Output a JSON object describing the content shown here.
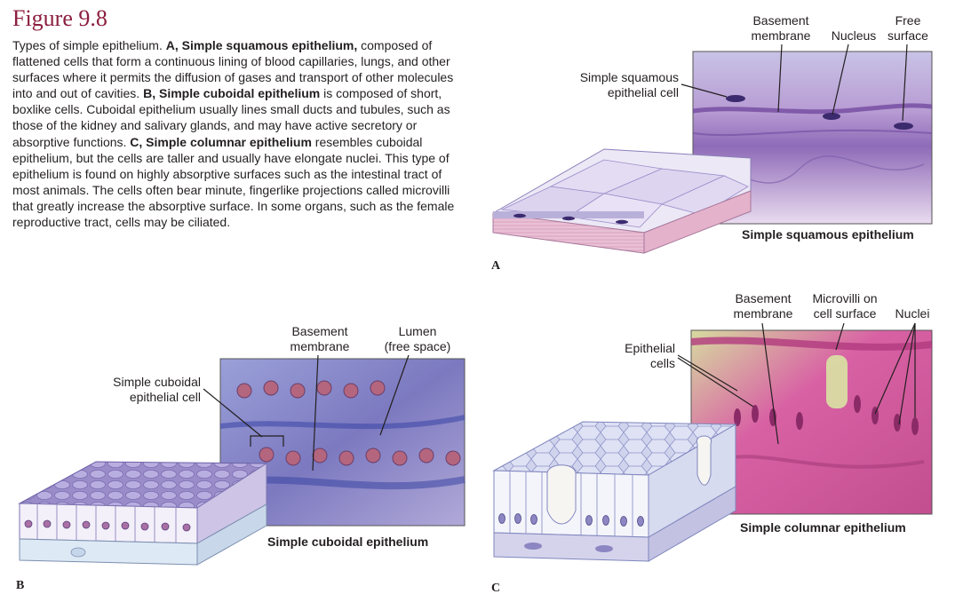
{
  "figure": {
    "title": "Figure 9.8",
    "caption": [
      {
        "t": "Types of simple epithelium. ",
        "b": false
      },
      {
        "t": "A, Simple squamous epithelium,",
        "b": true
      },
      {
        "t": " composed of flattened cells that form a continuous lining of blood capillaries, lungs, and other surfaces where it permits the diffusion of gases and transport of other molecules into and out of cavities. ",
        "b": false
      },
      {
        "t": "B, Simple cuboidal epithelium",
        "b": true
      },
      {
        "t": " is composed of short, boxlike cells. Cuboidal epithelium usually lines small ducts and tubules, such as those of the kidney and salivary glands, and may have active secretory or absorptive functions. ",
        "b": false
      },
      {
        "t": "C, Simple columnar epithelium",
        "b": true
      },
      {
        "t": " resembles cuboidal epithelium, but the cells are taller and usually have elongate nuclei. This type of epithelium is found on highly absorptive surfaces such as the intestinal tract of most animals. The cells often bear minute, fingerlike projections called microvilli that greatly increase the absorptive surface. In some organs, such as the female reproductive tract, cells may be ciliated.",
        "b": false
      }
    ]
  },
  "panel_a": {
    "letter": "A",
    "title": "Simple squamous epithelium",
    "labels": {
      "basement_1": "Basement",
      "basement_2": "membrane",
      "nucleus": "Nucleus",
      "free_1": "Free",
      "free_2": "surface",
      "cell_1": "Simple squamous",
      "cell_2": "epithelial cell"
    }
  },
  "panel_b": {
    "letter": "B",
    "title": "Simple cuboidal epithelium",
    "labels": {
      "basement_1": "Basement",
      "basement_2": "membrane",
      "lumen_1": "Lumen",
      "lumen_2": "(free space)",
      "cell_1": "Simple cuboidal",
      "cell_2": "epithelial cell"
    }
  },
  "panel_c": {
    "letter": "C",
    "title": "Simple columnar epithelium",
    "labels": {
      "basement_1": "Basement",
      "basement_2": "membrane",
      "microvilli_1": "Microvilli on",
      "microvilli_2": "cell surface",
      "nuclei": "Nuclei",
      "cells_1": "Epithelial",
      "cells_2": "cells"
    }
  },
  "colors": {
    "title": "#8b1e3f",
    "squamous_stain": "#b59ad0",
    "cuboidal_stain": "#8d8fc8",
    "columnar_stain": "#d65aa0",
    "columnar_bg": "#c6e08e",
    "tissue_pink": "#e6b8cf"
  }
}
